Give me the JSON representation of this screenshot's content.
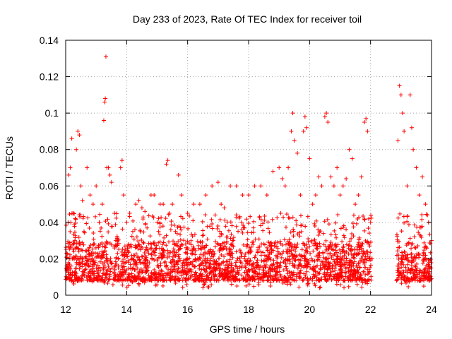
{
  "chart_data": {
    "type": "scatter",
    "title": "Day 233 of 2023, Rate Of TEC Index for receiver toil",
    "xlabel": "GPS time / hours",
    "ylabel": "ROTI / TECUs",
    "xlim": [
      12,
      24
    ],
    "ylim": [
      0,
      0.14
    ],
    "x_ticks": [
      "12",
      "14",
      "16",
      "18",
      "20",
      "22",
      "24"
    ],
    "y_ticks": [
      "0",
      "0.02",
      "0.04",
      "0.06",
      "0.08",
      "0.1",
      "0.12",
      "0.14"
    ],
    "grid": true,
    "marker": "+",
    "color": "#ff0000",
    "series": [
      {
        "name": "ROTI",
        "points": [
          [
            12.05,
            0.014
          ],
          [
            12.08,
            0.04
          ],
          [
            12.1,
            0.066
          ],
          [
            12.12,
            0.02
          ],
          [
            12.15,
            0.07
          ],
          [
            12.2,
            0.086
          ],
          [
            12.25,
            0.045
          ],
          [
            12.3,
            0.03
          ],
          [
            12.35,
            0.08
          ],
          [
            12.4,
            0.09
          ],
          [
            12.45,
            0.088
          ],
          [
            12.5,
            0.06
          ],
          [
            12.55,
            0.052
          ],
          [
            12.6,
            0.035
          ],
          [
            12.7,
            0.07
          ],
          [
            12.8,
            0.055
          ],
          [
            12.9,
            0.05
          ],
          [
            13.0,
            0.06
          ],
          [
            13.1,
            0.04
          ],
          [
            13.2,
            0.05
          ],
          [
            13.25,
            0.096
          ],
          [
            13.28,
            0.106
          ],
          [
            13.3,
            0.108
          ],
          [
            13.32,
            0.131
          ],
          [
            13.35,
            0.07
          ],
          [
            13.4,
            0.07
          ],
          [
            13.45,
            0.066
          ],
          [
            13.5,
            0.062
          ],
          [
            13.6,
            0.045
          ],
          [
            13.7,
            0.03
          ],
          [
            13.8,
            0.07
          ],
          [
            13.85,
            0.074
          ],
          [
            13.9,
            0.055
          ],
          [
            14.0,
            0.04
          ],
          [
            14.1,
            0.045
          ],
          [
            14.2,
            0.035
          ],
          [
            14.3,
            0.05
          ],
          [
            14.4,
            0.052
          ],
          [
            14.5,
            0.048
          ],
          [
            14.6,
            0.046
          ],
          [
            14.8,
            0.055
          ],
          [
            14.9,
            0.055
          ],
          [
            15.0,
            0.04
          ],
          [
            15.1,
            0.05
          ],
          [
            15.2,
            0.05
          ],
          [
            15.3,
            0.072
          ],
          [
            15.35,
            0.074
          ],
          [
            15.4,
            0.045
          ],
          [
            15.5,
            0.05
          ],
          [
            15.6,
            0.035
          ],
          [
            15.7,
            0.066
          ],
          [
            15.8,
            0.055
          ],
          [
            16.0,
            0.045
          ],
          [
            16.2,
            0.05
          ],
          [
            16.4,
            0.05
          ],
          [
            16.6,
            0.055
          ],
          [
            16.8,
            0.06
          ],
          [
            17.0,
            0.062
          ],
          [
            17.1,
            0.05
          ],
          [
            17.2,
            0.048
          ],
          [
            17.4,
            0.06
          ],
          [
            17.6,
            0.06
          ],
          [
            17.8,
            0.055
          ],
          [
            18.0,
            0.055
          ],
          [
            18.2,
            0.06
          ],
          [
            18.4,
            0.06
          ],
          [
            18.6,
            0.055
          ],
          [
            18.8,
            0.068
          ],
          [
            19.0,
            0.07
          ],
          [
            19.1,
            0.064
          ],
          [
            19.2,
            0.06
          ],
          [
            19.3,
            0.07
          ],
          [
            19.4,
            0.09
          ],
          [
            19.45,
            0.1
          ],
          [
            19.5,
            0.085
          ],
          [
            19.6,
            0.078
          ],
          [
            19.7,
            0.055
          ],
          [
            19.8,
            0.09
          ],
          [
            19.85,
            0.098
          ],
          [
            19.9,
            0.092
          ],
          [
            20.0,
            0.075
          ],
          [
            20.1,
            0.05
          ],
          [
            20.2,
            0.055
          ],
          [
            20.3,
            0.065
          ],
          [
            20.4,
            0.06
          ],
          [
            20.5,
            0.098
          ],
          [
            20.55,
            0.1
          ],
          [
            20.6,
            0.095
          ],
          [
            20.7,
            0.065
          ],
          [
            20.8,
            0.06
          ],
          [
            20.9,
            0.07
          ],
          [
            21.0,
            0.055
          ],
          [
            21.1,
            0.06
          ],
          [
            21.2,
            0.064
          ],
          [
            21.3,
            0.08
          ],
          [
            21.4,
            0.075
          ],
          [
            21.5,
            0.05
          ],
          [
            21.6,
            0.055
          ],
          [
            21.7,
            0.065
          ],
          [
            21.8,
            0.095
          ],
          [
            21.85,
            0.097
          ],
          [
            21.9,
            0.09
          ],
          [
            22.0,
            0.04
          ],
          [
            22.05,
            0.02
          ],
          [
            22.9,
            0.085
          ],
          [
            22.95,
            0.115
          ],
          [
            23.0,
            0.11
          ],
          [
            23.05,
            0.1
          ],
          [
            23.1,
            0.09
          ],
          [
            23.2,
            0.06
          ],
          [
            23.3,
            0.11
          ],
          [
            23.35,
            0.092
          ],
          [
            23.4,
            0.08
          ],
          [
            23.5,
            0.07
          ],
          [
            23.6,
            0.055
          ],
          [
            23.7,
            0.065
          ],
          [
            23.8,
            0.05
          ],
          [
            23.9,
            0.04
          ],
          [
            24.0,
            0.03
          ]
        ]
      }
    ],
    "dense_band": {
      "segments": [
        [
          12.0,
          22.05
        ],
        [
          22.85,
          24.0
        ]
      ],
      "lower": 0.004,
      "upper": 0.045,
      "median": 0.016
    }
  }
}
